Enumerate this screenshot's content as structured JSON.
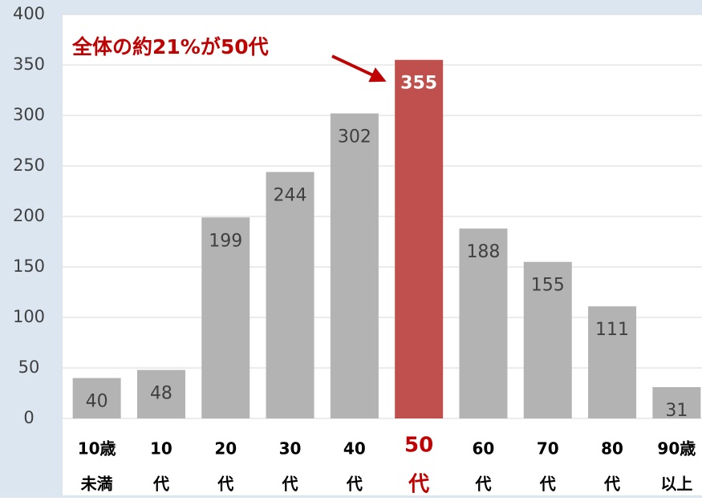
{
  "chart_data": {
    "type": "bar",
    "annotation": "全体の約21%が50代",
    "categories": [
      [
        "10歳",
        "未満"
      ],
      [
        "10",
        "代"
      ],
      [
        "20",
        "代"
      ],
      [
        "30",
        "代"
      ],
      [
        "40",
        "代"
      ],
      [
        "50",
        "代"
      ],
      [
        "60",
        "代"
      ],
      [
        "70",
        "代"
      ],
      [
        "80",
        "代"
      ],
      [
        "90歳",
        "以上"
      ]
    ],
    "values": [
      40,
      48,
      199,
      244,
      302,
      355,
      188,
      155,
      111,
      31
    ],
    "color": "#b3b3b3",
    "highlight_index": 5,
    "highlight_color": "#c0504d",
    "ylim": [
      0,
      400
    ],
    "yticks": [
      0,
      50,
      100,
      150,
      200,
      250,
      300,
      350,
      400
    ],
    "grid": true
  }
}
